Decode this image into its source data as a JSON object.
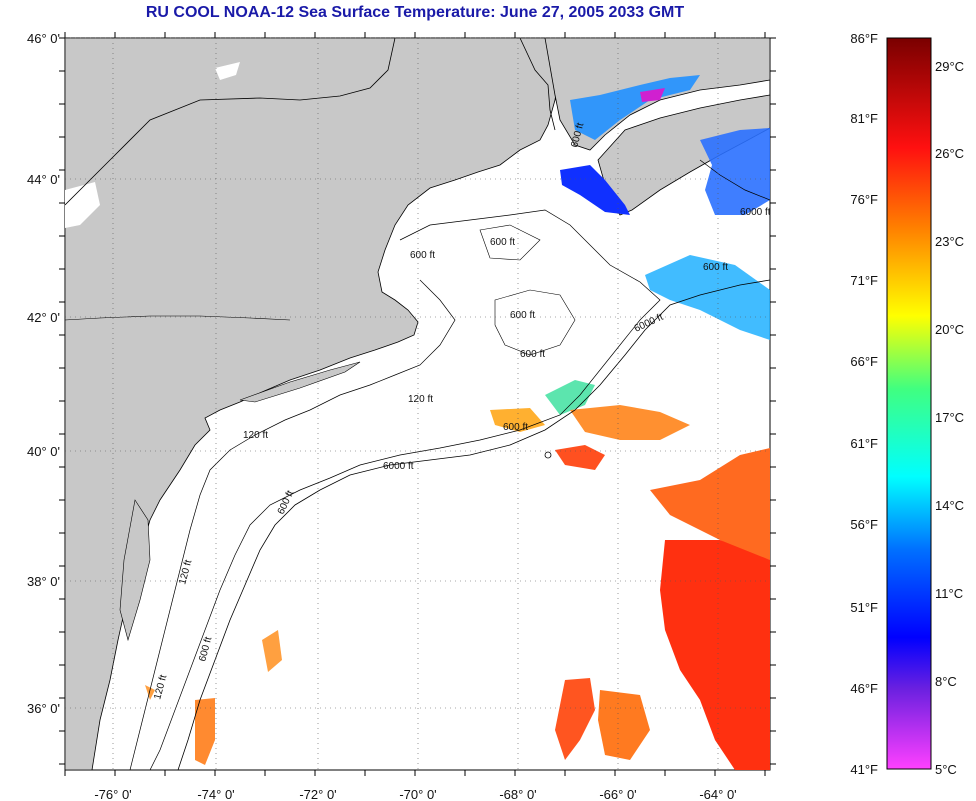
{
  "title": "RU COOL  NOAA-12  Sea Surface Temperature:  June 27, 2005 2033 GMT",
  "map": {
    "lat_labels": [
      "46° 0'",
      "44° 0'",
      "42° 0'",
      "40° 0'",
      "38° 0'",
      "36° 0'"
    ],
    "lon_labels": [
      "-76° 0'",
      "-74° 0'",
      "-72° 0'",
      "-70° 0'",
      "-68° 0'",
      "-66° 0'",
      "-64° 0'"
    ],
    "contour_labels": [
      "600 ft",
      "600 ft",
      "600 ft",
      "600 ft",
      "600 ft",
      "600 ft",
      "6000 ft",
      "600 ft",
      "6000 ft",
      "120 ft",
      "120 ft",
      "600 ft",
      "120 ft",
      "6000 ft",
      "600 ft",
      "120 ft"
    ],
    "colors": {
      "land": "#c8c8c8",
      "ocean": "#ffffff",
      "coast": "#000000"
    }
  },
  "colorbar": {
    "f_labels": [
      "86°F",
      "81°F",
      "76°F",
      "71°F",
      "66°F",
      "61°F",
      "56°F",
      "51°F",
      "46°F",
      "41°F"
    ],
    "c_labels": [
      "29°C",
      "26°C",
      "23°C",
      "20°C",
      "17°C",
      "14°C",
      "11°C",
      "8°C",
      "5°C"
    ]
  }
}
